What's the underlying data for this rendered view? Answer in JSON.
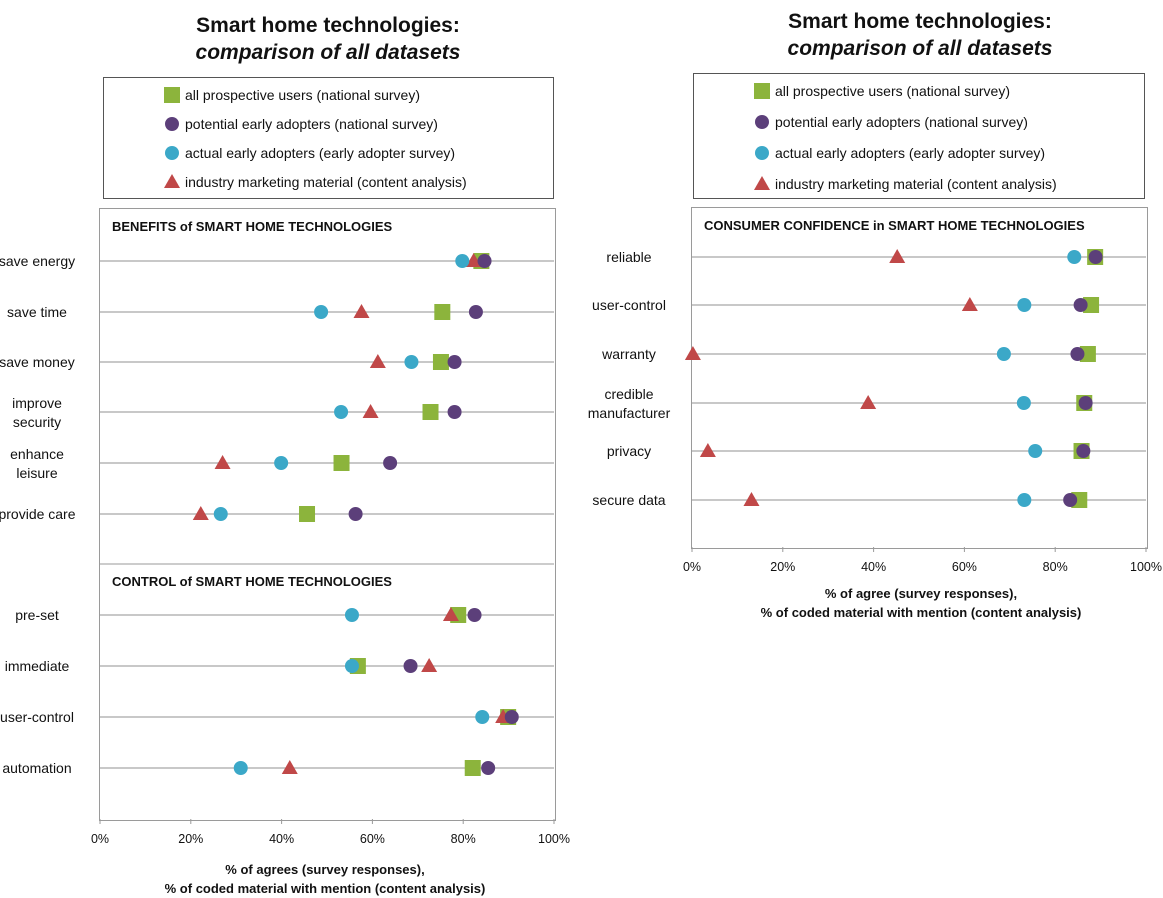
{
  "legend": {
    "entries": [
      {
        "key": "all",
        "label": "all prospective users (national survey)",
        "marker": "square",
        "color": "#8cb43c"
      },
      {
        "key": "potential",
        "label": "potential early adopters (national survey)",
        "marker": "circle",
        "color": "#5c3f7a"
      },
      {
        "key": "actual",
        "label": "actual early adopters (early adopter survey)",
        "marker": "circle",
        "color": "#3ba8c8"
      },
      {
        "key": "industry",
        "label": "industry marketing material (content analysis)",
        "marker": "triangle",
        "color": "#c04848"
      }
    ]
  },
  "chart_data": [
    {
      "type": "scatter",
      "title": "Smart home technologies:",
      "subtitle": "comparison of all datasets",
      "xlabel_line1": "% of agrees (survey responses),",
      "xlabel_line2": "% of coded material with mention (content analysis)",
      "xlim": [
        0,
        100
      ],
      "xticks": [
        "0%",
        "20%",
        "40%",
        "60%",
        "80%",
        "100%"
      ],
      "sections": [
        {
          "name": "BENEFITS of SMART HOME TECHNOLOGIES",
          "categories": [
            {
              "label": [
                "save energy"
              ],
              "all": 84,
              "potential": 84.7,
              "actual": 79.8,
              "industry": 82.3
            },
            {
              "label": [
                "save time"
              ],
              "all": 75.4,
              "potential": 82.8,
              "actual": 48.7,
              "industry": 57.6
            },
            {
              "label": [
                "save money"
              ],
              "all": 75.1,
              "potential": 78.1,
              "actual": 68.6,
              "industry": 61.2
            },
            {
              "label": [
                "improve",
                "security"
              ],
              "all": 72.8,
              "potential": 78.1,
              "actual": 53.1,
              "industry": 59.6
            },
            {
              "label": [
                "enhance",
                "leisure"
              ],
              "all": 53.2,
              "potential": 63.9,
              "actual": 39.9,
              "industry": 27
            },
            {
              "label": [
                "provide care"
              ],
              "all": 45.6,
              "potential": 56.3,
              "actual": 26.6,
              "industry": 22.2
            }
          ]
        },
        {
          "name": "CONTROL of SMART HOME TECHNOLOGIES",
          "categories": [
            {
              "label": [
                "pre-set"
              ],
              "all": 78.9,
              "potential": 82.5,
              "actual": 55.5,
              "industry": 77.3
            },
            {
              "label": [
                "immediate"
              ],
              "all": 56.8,
              "potential": 68.4,
              "actual": 55.5,
              "industry": 72.5
            },
            {
              "label": [
                "user-control"
              ],
              "all": 89.9,
              "potential": 90.7,
              "actual": 84.2,
              "industry": 88.8
            },
            {
              "label": [
                "automation"
              ],
              "all": 82.1,
              "potential": 85.5,
              "actual": 31,
              "industry": 41.8
            }
          ]
        }
      ]
    },
    {
      "type": "scatter",
      "title": "Smart home technologies:",
      "subtitle": "comparison of all datasets",
      "xlabel_line1": "% of agree (survey responses),",
      "xlabel_line2": "% of coded material with mention (content analysis)",
      "xlim": [
        0,
        100
      ],
      "xticks": [
        "0%",
        "20%",
        "40%",
        "60%",
        "80%",
        "100%"
      ],
      "sections": [
        {
          "name": "CONSUMER CONFIDENCE in SMART HOME TECHNOLOGIES",
          "categories": [
            {
              "label": [
                "reliable"
              ],
              "all": 88.8,
              "potential": 88.9,
              "actual": 84.2,
              "industry": 45.2
            },
            {
              "label": [
                "user-control"
              ],
              "all": 87.9,
              "potential": 85.6,
              "actual": 73.2,
              "industry": 61.2
            },
            {
              "label": [
                "warranty"
              ],
              "all": 87.2,
              "potential": 84.9,
              "actual": 68.7,
              "industry": 0.2
            },
            {
              "label": [
                "credible",
                "manufacturer"
              ],
              "all": 86.4,
              "potential": 86.7,
              "actual": 73.1,
              "industry": 38.8
            },
            {
              "label": [
                "privacy"
              ],
              "all": 85.8,
              "potential": 86.2,
              "actual": 75.6,
              "industry": 3.5
            },
            {
              "label": [
                "secure data"
              ],
              "all": 85.3,
              "potential": 83.3,
              "actual": 73.2,
              "industry": 13.1
            }
          ]
        }
      ]
    }
  ]
}
